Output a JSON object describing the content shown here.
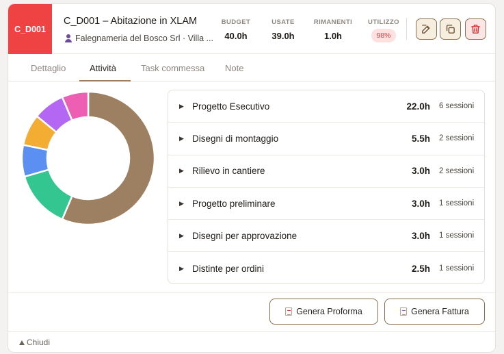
{
  "header": {
    "code": "C_D001",
    "title": "C_D001 – Abitazione in XLAM",
    "client": "Falegnameria del Bosco Srl · Villa ..."
  },
  "stats": {
    "budget_label": "BUDGET",
    "budget_value": "40.0h",
    "used_label": "USATE",
    "used_value": "39.0h",
    "remaining_label": "RIMANENTI",
    "remaining_value": "1.0h",
    "usage_label": "UTILIZZO",
    "usage_value": "98%"
  },
  "toolbar": {
    "edit_icon": "edit-icon",
    "duplicate_icon": "copy-icon",
    "delete_icon": "trash-icon"
  },
  "tabs": [
    {
      "label": "Dettaglio"
    },
    {
      "label": "Attività"
    },
    {
      "label": "Task commessa"
    },
    {
      "label": "Note"
    }
  ],
  "active_tab": "Attività",
  "chart_data": {
    "type": "pie",
    "values": [
      22.0,
      5.5,
      3.0,
      3.0,
      3.0,
      2.5
    ],
    "colors": [
      "#9c8061",
      "#34c690",
      "#5b8ff2",
      "#f3ad33",
      "#b367f2",
      "#ec5fb3"
    ],
    "donut": true
  },
  "activities": [
    {
      "name": "Progetto Esecutivo",
      "hours": "22.0h",
      "sessions": "6 sessioni"
    },
    {
      "name": "Disegni di montaggio",
      "hours": "5.5h",
      "sessions": "2 sessioni"
    },
    {
      "name": "Rilievo in cantiere",
      "hours": "3.0h",
      "sessions": "2 sessioni"
    },
    {
      "name": "Progetto preliminare",
      "hours": "3.0h",
      "sessions": "1 sessioni"
    },
    {
      "name": "Disegni per approvazione",
      "hours": "3.0h",
      "sessions": "1 sessioni"
    },
    {
      "name": "Distinte per ordini",
      "hours": "2.5h",
      "sessions": "1 sessioni"
    }
  ],
  "actions": {
    "proforma_label": "Genera Proforma",
    "fattura_label": "Genera Fattura"
  },
  "footer": {
    "close_label": "Chiudi"
  },
  "colors": {
    "code_badge": "#ef4343",
    "accent": "#9d7e5e",
    "usage_pill_bg": "#fde0e0",
    "usage_pill_text": "#d23d3d"
  }
}
